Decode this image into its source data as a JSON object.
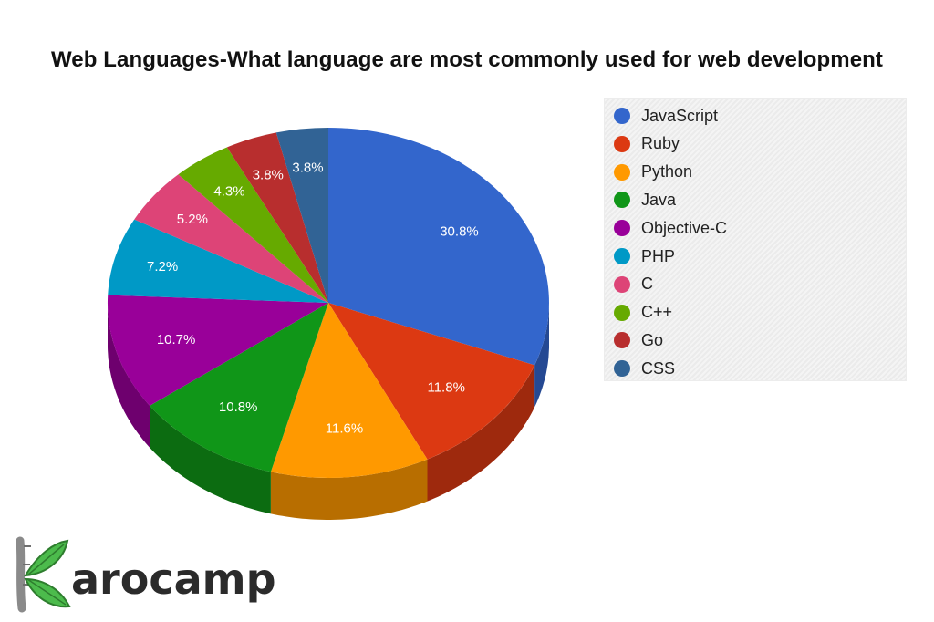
{
  "chart_data": {
    "type": "pie",
    "title": "Web Languages-What language are most commonly used for web development",
    "legend_position": "right",
    "slices": [
      {
        "label": "JavaScript",
        "value": 30.8,
        "display": "30.8%",
        "color": "#3366cc"
      },
      {
        "label": "Ruby",
        "value": 11.8,
        "display": "11.8%",
        "color": "#dc3912"
      },
      {
        "label": "Python",
        "value": 11.6,
        "display": "11.6%",
        "color": "#ff9900"
      },
      {
        "label": "Java",
        "value": 10.8,
        "display": "10.8%",
        "color": "#109618"
      },
      {
        "label": "Objective-C",
        "value": 10.7,
        "display": "10.7%",
        "color": "#990099"
      },
      {
        "label": "PHP",
        "value": 7.2,
        "display": "7.2%",
        "color": "#0099c6"
      },
      {
        "label": "C",
        "value": 5.2,
        "display": "5.2%",
        "color": "#dd4477"
      },
      {
        "label": "C++",
        "value": 4.3,
        "display": "4.3%",
        "color": "#66aa00"
      },
      {
        "label": "Go",
        "value": 3.8,
        "display": "3.8%",
        "color": "#b82e2e"
      },
      {
        "label": "CSS",
        "value": 3.8,
        "display": "3.8%",
        "color": "#316395"
      }
    ]
  },
  "logo": {
    "text": "Karocamp",
    "letters": "arocamp",
    "colors": {
      "leaf": "#4cbb4c",
      "stem": "#8a8a8a",
      "text": "#2b2b2b"
    }
  }
}
